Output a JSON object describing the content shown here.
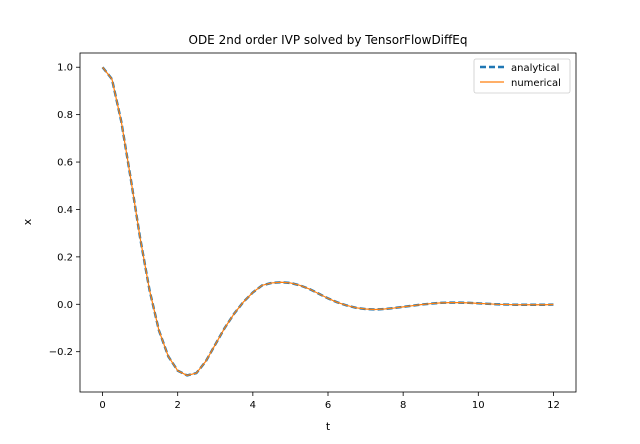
{
  "chart_data": {
    "type": "line",
    "title": "ODE 2nd order IVP solved by TensorFlowDiffEq",
    "xlabel": "t",
    "ylabel": "x",
    "xlim": [
      -0.6,
      12.6
    ],
    "ylim": [
      -0.37,
      1.06
    ],
    "xticks": [
      0,
      2,
      4,
      6,
      8,
      10,
      12
    ],
    "xtick_labels": [
      "0",
      "2",
      "4",
      "6",
      "8",
      "10",
      "12"
    ],
    "yticks": [
      -0.2,
      0.0,
      0.2,
      0.4,
      0.6,
      0.8,
      1.0
    ],
    "ytick_labels": [
      "−0.2",
      "0.0",
      "0.2",
      "0.4",
      "0.6",
      "0.8",
      "1.0"
    ],
    "grid": false,
    "legend_position": "upper right",
    "x": [
      0,
      0.25,
      0.5,
      0.75,
      1.0,
      1.25,
      1.5,
      1.75,
      2.0,
      2.25,
      2.5,
      2.75,
      3.0,
      3.25,
      3.5,
      3.75,
      4.0,
      4.25,
      4.5,
      4.75,
      5.0,
      5.25,
      5.5,
      5.75,
      6.0,
      6.25,
      6.5,
      6.75,
      7.0,
      7.25,
      7.5,
      7.75,
      8.0,
      8.25,
      8.5,
      8.75,
      9.0,
      9.25,
      9.5,
      9.75,
      10.0,
      10.25,
      10.5,
      10.75,
      11.0,
      11.25,
      11.5,
      11.75,
      12.0
    ],
    "series": [
      {
        "name": "analytical",
        "color": "#1f77b4",
        "style": "dashed",
        "values": [
          1.0,
          0.95,
          0.77,
          0.53,
          0.28,
          0.06,
          -0.11,
          -0.22,
          -0.28,
          -0.3,
          -0.29,
          -0.24,
          -0.17,
          -0.1,
          -0.04,
          0.01,
          0.05,
          0.08,
          0.09,
          0.093,
          0.09,
          0.08,
          0.065,
          0.045,
          0.025,
          0.008,
          -0.005,
          -0.015,
          -0.02,
          -0.022,
          -0.02,
          -0.016,
          -0.011,
          -0.006,
          -0.001,
          0.003,
          0.006,
          0.007,
          0.007,
          0.006,
          0.004,
          0.002,
          0.0,
          -0.001,
          -0.002,
          -0.002,
          -0.002,
          -0.002,
          -0.001
        ]
      },
      {
        "name": "numerical",
        "color": "#ff7f0e",
        "style": "solid",
        "values": [
          1.0,
          0.95,
          0.77,
          0.53,
          0.28,
          0.06,
          -0.11,
          -0.22,
          -0.28,
          -0.3,
          -0.29,
          -0.24,
          -0.17,
          -0.1,
          -0.04,
          0.01,
          0.05,
          0.08,
          0.09,
          0.093,
          0.09,
          0.08,
          0.065,
          0.045,
          0.025,
          0.008,
          -0.005,
          -0.015,
          -0.02,
          -0.022,
          -0.02,
          -0.016,
          -0.011,
          -0.006,
          -0.001,
          0.003,
          0.006,
          0.007,
          0.007,
          0.006,
          0.004,
          0.002,
          0.0,
          -0.001,
          -0.002,
          -0.002,
          -0.002,
          -0.002,
          -0.001
        ]
      }
    ]
  }
}
